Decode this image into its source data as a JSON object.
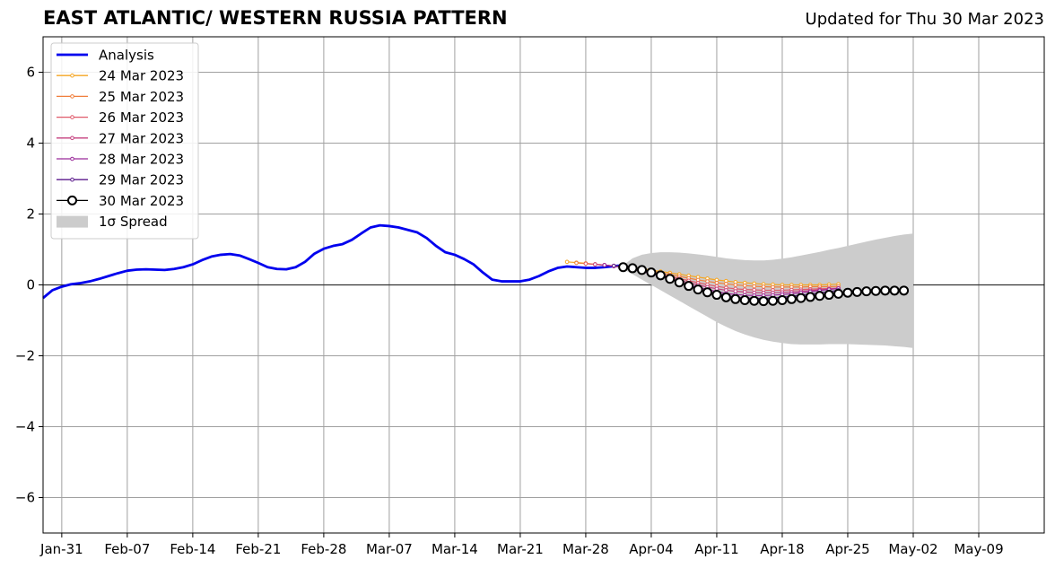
{
  "chart_data": {
    "type": "line",
    "title": "EAST ATLANTIC/ WESTERN RUSSIA PATTERN",
    "subtitle": "Updated for Thu 30 Mar 2023",
    "xlabel": "",
    "ylabel": "",
    "ylim": [
      -7,
      7
    ],
    "xlim": [
      "2023-01-29",
      "2023-05-16"
    ],
    "xticks": [
      {
        "date": "2023-01-31",
        "label": "Jan-31"
      },
      {
        "date": "2023-02-07",
        "label": "Feb-07"
      },
      {
        "date": "2023-02-14",
        "label": "Feb-14"
      },
      {
        "date": "2023-02-21",
        "label": "Feb-21"
      },
      {
        "date": "2023-02-28",
        "label": "Feb-28"
      },
      {
        "date": "2023-03-07",
        "label": "Mar-07"
      },
      {
        "date": "2023-03-14",
        "label": "Mar-14"
      },
      {
        "date": "2023-03-21",
        "label": "Mar-21"
      },
      {
        "date": "2023-03-28",
        "label": "Mar-28"
      },
      {
        "date": "2023-04-04",
        "label": "Apr-04"
      },
      {
        "date": "2023-04-11",
        "label": "Apr-11"
      },
      {
        "date": "2023-04-18",
        "label": "Apr-18"
      },
      {
        "date": "2023-04-25",
        "label": "Apr-25"
      },
      {
        "date": "2023-05-02",
        "label": "May-02"
      },
      {
        "date": "2023-05-09",
        "label": "May-09"
      }
    ],
    "yticks": [
      {
        "value": -6,
        "label": "−6"
      },
      {
        "value": -4,
        "label": "−4"
      },
      {
        "value": -2,
        "label": "−2"
      },
      {
        "value": 0,
        "label": "0"
      },
      {
        "value": 2,
        "label": "2"
      },
      {
        "value": 4,
        "label": "4"
      },
      {
        "value": 6,
        "label": "6"
      }
    ],
    "grid": true,
    "legend_position": "top-left",
    "analysis": {
      "name": "Analysis",
      "color": "#0000ee",
      "start": "2023-01-29",
      "values": [
        -0.37,
        -0.15,
        -0.05,
        0.02,
        0.05,
        0.1,
        0.17,
        0.25,
        0.33,
        0.4,
        0.43,
        0.44,
        0.43,
        0.42,
        0.45,
        0.5,
        0.58,
        0.7,
        0.8,
        0.85,
        0.87,
        0.83,
        0.73,
        0.62,
        0.5,
        0.45,
        0.44,
        0.5,
        0.65,
        0.88,
        1.02,
        1.1,
        1.15,
        1.27,
        1.45,
        1.62,
        1.68,
        1.66,
        1.62,
        1.55,
        1.48,
        1.32,
        1.1,
        0.92,
        0.85,
        0.73,
        0.58,
        0.35,
        0.15,
        0.1,
        0.1,
        0.1,
        0.15,
        0.25,
        0.38,
        0.48,
        0.52,
        0.5,
        0.48,
        0.48,
        0.5,
        0.53,
        0.55
      ]
    },
    "forecasts": [
      {
        "name": "24 Mar 2023",
        "color": "#f5a623",
        "start": "2023-03-26",
        "values": [
          0.65,
          0.63,
          0.61,
          0.58,
          0.56,
          0.54,
          0.52,
          0.49,
          0.46,
          0.42,
          0.38,
          0.34,
          0.3,
          0.26,
          0.22,
          0.18,
          0.14,
          0.11,
          0.08,
          0.06,
          0.04,
          0.02,
          0.01,
          0,
          0,
          0,
          0,
          0,
          0.01,
          0.02
        ]
      },
      {
        "name": "25 Mar 2023",
        "color": "#f07f3c",
        "start": "2023-03-27",
        "values": [
          0.62,
          0.6,
          0.58,
          0.56,
          0.53,
          0.5,
          0.47,
          0.43,
          0.39,
          0.34,
          0.29,
          0.24,
          0.19,
          0.14,
          0.1,
          0.06,
          0.03,
          0,
          -0.02,
          -0.04,
          -0.05,
          -0.06,
          -0.06,
          -0.06,
          -0.06,
          -0.05,
          -0.05,
          -0.05,
          -0.04
        ]
      },
      {
        "name": "26 Mar 2023",
        "color": "#e05a6a",
        "start": "2023-03-28",
        "values": [
          0.6,
          0.58,
          0.56,
          0.53,
          0.49,
          0.45,
          0.41,
          0.36,
          0.3,
          0.24,
          0.18,
          0.12,
          0.06,
          0.01,
          -0.04,
          -0.08,
          -0.11,
          -0.13,
          -0.14,
          -0.15,
          -0.15,
          -0.15,
          -0.14,
          -0.13,
          -0.12,
          -0.11,
          -0.1,
          -0.09
        ]
      },
      {
        "name": "27 Mar 2023",
        "color": "#c4417f",
        "start": "2023-03-29",
        "values": [
          0.58,
          0.56,
          0.53,
          0.49,
          0.45,
          0.4,
          0.34,
          0.27,
          0.2,
          0.13,
          0.06,
          0,
          -0.06,
          -0.11,
          -0.15,
          -0.18,
          -0.2,
          -0.22,
          -0.22,
          -0.22,
          -0.21,
          -0.2,
          -0.18,
          -0.16,
          -0.14,
          -0.12,
          -0.1
        ]
      },
      {
        "name": "28 Mar 2023",
        "color": "#9a2b9a",
        "start": "2023-03-30",
        "values": [
          0.56,
          0.53,
          0.49,
          0.44,
          0.38,
          0.31,
          0.24,
          0.16,
          0.08,
          0,
          -0.07,
          -0.13,
          -0.19,
          -0.24,
          -0.27,
          -0.29,
          -0.3,
          -0.3,
          -0.29,
          -0.27,
          -0.25,
          -0.22,
          -0.19,
          -0.16,
          -0.13,
          -0.1
        ]
      },
      {
        "name": "29 Mar 2023",
        "color": "#5b1a8c",
        "start": "2023-03-31",
        "values": [
          0.54,
          0.5,
          0.45,
          0.39,
          0.32,
          0.24,
          0.16,
          0.07,
          -0.02,
          -0.1,
          -0.18,
          -0.25,
          -0.3,
          -0.34,
          -0.37,
          -0.38,
          -0.38,
          -0.37,
          -0.35,
          -0.32,
          -0.29,
          -0.26,
          -0.22,
          -0.19,
          -0.15
        ]
      },
      {
        "name": "30 Mar 2023",
        "color": "#000000",
        "start": "2023-04-01",
        "values": [
          0.5,
          0.47,
          0.42,
          0.35,
          0.27,
          0.17,
          0.07,
          -0.03,
          -0.13,
          -0.21,
          -0.28,
          -0.35,
          -0.4,
          -0.43,
          -0.45,
          -0.46,
          -0.45,
          -0.43,
          -0.4,
          -0.37,
          -0.34,
          -0.31,
          -0.28,
          -0.25,
          -0.22,
          -0.2,
          -0.18,
          -0.17,
          -0.16,
          -0.16,
          -0.16
        ]
      }
    ],
    "spread": {
      "name": "1σ Spread",
      "color": "#cccccc",
      "start": "2023-04-01",
      "upper": [
        0.55,
        0.75,
        0.85,
        0.9,
        0.92,
        0.92,
        0.91,
        0.89,
        0.86,
        0.83,
        0.79,
        0.75,
        0.72,
        0.7,
        0.69,
        0.69,
        0.71,
        0.74,
        0.78,
        0.83,
        0.88,
        0.93,
        0.99,
        1.04,
        1.1,
        1.16,
        1.22,
        1.28,
        1.33,
        1.38,
        1.42,
        1.45
      ],
      "lower": [
        0.45,
        0.3,
        0.15,
        0,
        -0.15,
        -0.3,
        -0.45,
        -0.6,
        -0.75,
        -0.9,
        -1.05,
        -1.18,
        -1.3,
        -1.4,
        -1.48,
        -1.55,
        -1.6,
        -1.64,
        -1.67,
        -1.68,
        -1.68,
        -1.68,
        -1.67,
        -1.67,
        -1.67,
        -1.68,
        -1.69,
        -1.7,
        -1.71,
        -1.73,
        -1.75,
        -1.78
      ]
    }
  }
}
